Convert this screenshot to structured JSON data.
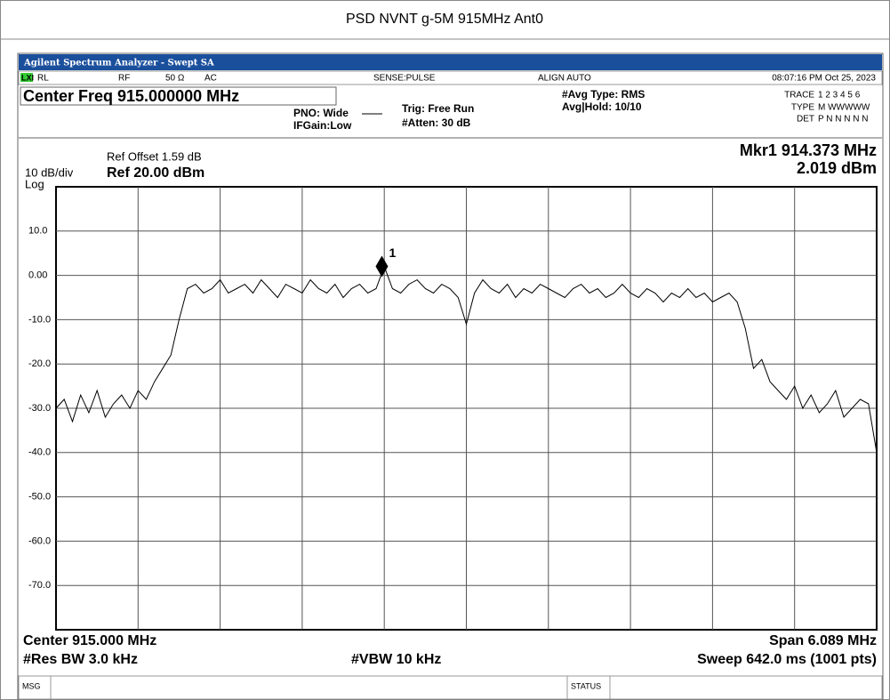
{
  "page_title": "PSD NVNT g-5M 915MHz Ant0",
  "window_title": "Agilent Spectrum Analyzer - Swept SA",
  "status_row": {
    "logo": "LXI",
    "rl": "RL",
    "rf": "RF",
    "impedance": "50 Ω",
    "coupling": "AC",
    "sense": "SENSE:PULSE",
    "align": "ALIGN AUTO",
    "datetime": "08:07:16 PM Oct 25, 2023"
  },
  "header": {
    "center_freq": "Center Freq 915.000000 MHz",
    "pno": "PNO: Wide",
    "ifgain": "IFGain:Low",
    "trig": "Trig: Free Run",
    "atten": "#Atten: 30 dB",
    "avg_type": "#Avg Type: RMS",
    "avg_hold": "Avg|Hold: 10/10",
    "trace_label": "TRACE",
    "trace_values": "1 2 3 4 5 6",
    "type_label": "TYPE",
    "type_values": "M WWWWW",
    "det_label": "DET",
    "det_values": "P N N N N N"
  },
  "plot_header": {
    "ref_offset": "Ref Offset 1.59 dB",
    "scale": "10 dB/div",
    "ref_level": "Ref 20.00 dBm",
    "log": "Log"
  },
  "footer": {
    "center": "Center 915.000 MHz",
    "span": "Span 6.089 MHz",
    "rbw": "#Res BW 3.0 kHz",
    "vbw": "#VBW 10 kHz",
    "sweep": "Sweep  642.0 ms (1001 pts)"
  },
  "status_bar": {
    "msg": "MSG",
    "status": "STATUS"
  },
  "chart_data": {
    "type": "line",
    "xlim": [
      911.9555,
      918.0445
    ],
    "ylim": [
      -80,
      20
    ],
    "yticks": [
      {
        "value": 10,
        "label": "10.0"
      },
      {
        "value": 0,
        "label": "0.00"
      },
      {
        "value": -10,
        "label": "-10.0"
      },
      {
        "value": -20,
        "label": "-20.0"
      },
      {
        "value": -30,
        "label": "-30.0"
      },
      {
        "value": -40,
        "label": "-40.0"
      },
      {
        "value": -50,
        "label": "-50.0"
      },
      {
        "value": -60,
        "label": "-60.0"
      },
      {
        "value": -70,
        "label": "-70.0"
      }
    ],
    "grid": true,
    "color": "#000000",
    "values": [
      -30,
      -28,
      -33,
      -27,
      -31,
      -26,
      -32,
      -29,
      -27,
      -30,
      -26,
      -28,
      -24,
      -21,
      -18,
      -10,
      -3,
      -2,
      -4,
      -3,
      -1,
      -4,
      -3,
      -2,
      -4,
      -1,
      -3,
      -5,
      -2,
      -3,
      -4,
      -1,
      -3,
      -4,
      -2,
      -5,
      -3,
      -2,
      -4,
      -3,
      2,
      -3,
      -4,
      -2,
      -1,
      -3,
      -4,
      -2,
      -3,
      -5,
      -11,
      -4,
      -1,
      -3,
      -4,
      -2,
      -5,
      -3,
      -4,
      -2,
      -3,
      -4,
      -5,
      -3,
      -2,
      -4,
      -3,
      -5,
      -4,
      -2,
      -4,
      -5,
      -3,
      -4,
      -6,
      -4,
      -5,
      -3,
      -5,
      -4,
      -6,
      -5,
      -4,
      -6,
      -12,
      -21,
      -19,
      -24,
      -26,
      -28,
      -25,
      -30,
      -27,
      -31,
      -29,
      -26,
      -32,
      -30,
      -28,
      -29,
      -40
    ],
    "marker": {
      "label": "1",
      "x": 914.373,
      "value": 2.019,
      "x_label": "Mkr1 914.373 MHz",
      "value_label": "2.019 dBm"
    }
  }
}
